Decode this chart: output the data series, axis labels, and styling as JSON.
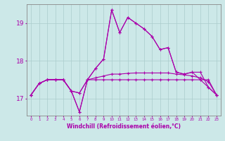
{
  "xlabel": "Windchill (Refroidissement éolien,°C)",
  "x_ticks": [
    0,
    1,
    2,
    3,
    4,
    5,
    6,
    7,
    8,
    9,
    10,
    11,
    12,
    13,
    14,
    15,
    16,
    17,
    18,
    19,
    20,
    21,
    22,
    23
  ],
  "ylim": [
    16.55,
    19.5
  ],
  "yticks": [
    17,
    18,
    19
  ],
  "background_color": "#cce8e8",
  "line_color": "#aa00aa",
  "grid_color": "#aacccc",
  "line1": [
    17.1,
    17.4,
    17.5,
    17.5,
    17.5,
    17.2,
    17.15,
    17.5,
    17.5,
    17.5,
    17.5,
    17.5,
    17.5,
    17.5,
    17.5,
    17.5,
    17.5,
    17.5,
    17.5,
    17.5,
    17.5,
    17.5,
    17.5,
    17.1
  ],
  "line2": [
    17.1,
    17.4,
    17.5,
    17.5,
    17.5,
    17.2,
    16.65,
    17.5,
    17.8,
    18.05,
    19.35,
    18.75,
    19.15,
    19.0,
    18.85,
    18.65,
    18.3,
    18.35,
    17.7,
    17.65,
    17.7,
    17.7,
    17.3,
    17.1
  ],
  "line3": [
    17.1,
    17.4,
    17.5,
    17.5,
    17.5,
    17.2,
    16.65,
    17.5,
    17.8,
    18.05,
    19.35,
    18.75,
    19.15,
    19.0,
    18.85,
    18.65,
    18.3,
    18.35,
    17.7,
    17.65,
    17.7,
    17.5,
    17.3,
    17.1
  ],
  "line4": [
    17.1,
    17.4,
    17.5,
    17.5,
    17.5,
    17.2,
    17.15,
    17.5,
    17.55,
    17.6,
    17.65,
    17.65,
    17.67,
    17.68,
    17.68,
    17.68,
    17.68,
    17.68,
    17.65,
    17.63,
    17.6,
    17.55,
    17.45,
    17.1
  ]
}
